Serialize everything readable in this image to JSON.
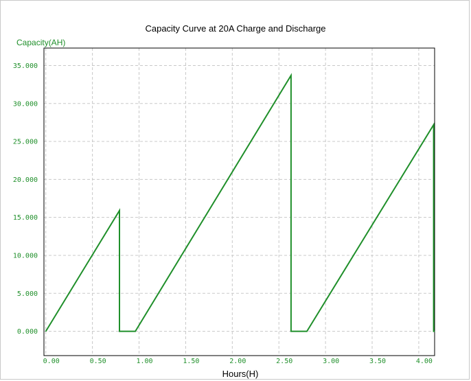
{
  "chart_data": {
    "type": "line",
    "title": "Capacity Curve at 20A Charge and Discharge",
    "ylabel": "Capacity(AH)",
    "xlabel": "Hours(H)",
    "xlim": [
      -0.02,
      4.17
    ],
    "ylim": [
      -3.2,
      37.3
    ],
    "x_ticks": [
      0,
      0.5,
      1,
      1.5,
      2,
      2.5,
      3,
      3.5,
      4
    ],
    "x_tick_labels": [
      "0.00",
      "0.50",
      "1.00",
      "1.50",
      "2.00",
      "2.50",
      "3.00",
      "3.50",
      "4.00"
    ],
    "y_ticks": [
      0,
      5,
      10,
      15,
      20,
      25,
      30,
      35
    ],
    "y_tick_labels": [
      "0.000",
      "5.000",
      "10.000",
      "15.000",
      "20.000",
      "25.000",
      "30.000",
      "35.000"
    ],
    "grid": true,
    "series": [
      {
        "color": "#1f8f2a",
        "x": [
          0,
          0.79,
          0.79,
          0.96,
          2.63,
          2.63,
          2.8,
          4.16,
          4.16,
          4.17
        ],
        "y": [
          0,
          15.9,
          0,
          0,
          33.7,
          0,
          0,
          27.2,
          0,
          0
        ]
      }
    ]
  },
  "colors": {
    "axis_text": "#1f8f2a",
    "line": "#1f8f2a",
    "grid": "#c8c8c8"
  }
}
